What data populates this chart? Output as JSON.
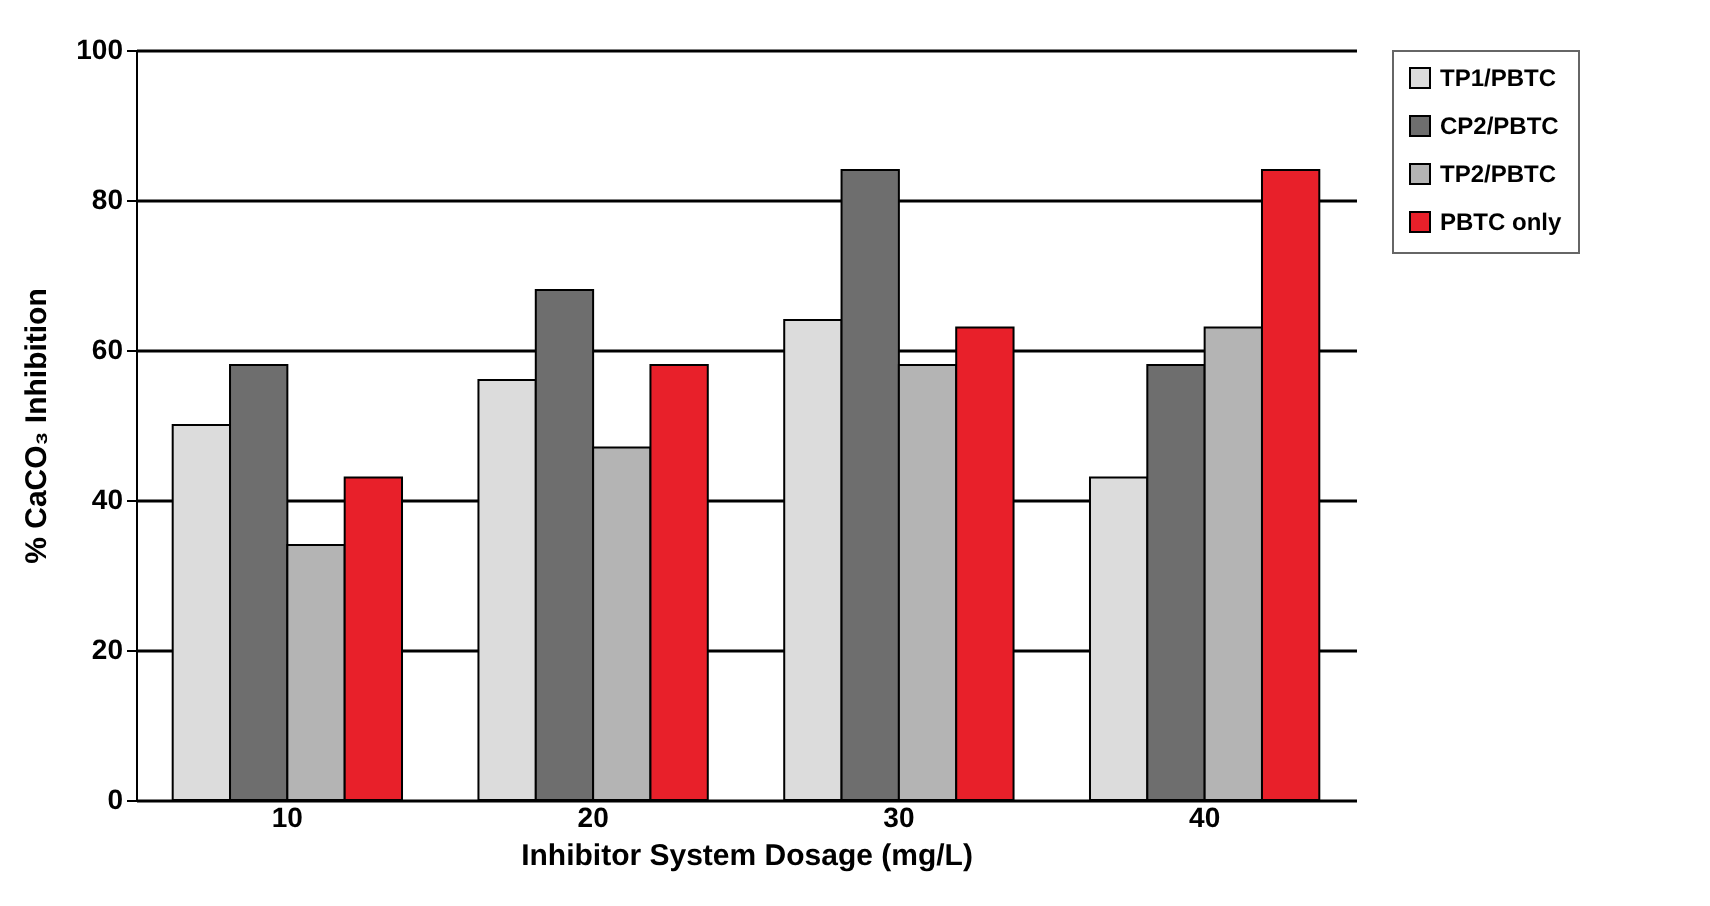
{
  "chart_data": {
    "type": "bar",
    "xlabel": "Inhibitor System Dosage (mg/L)",
    "ylabel": "% CaCO₃ Inhibition",
    "categories": [
      "10",
      "20",
      "30",
      "40"
    ],
    "series": [
      {
        "name": "TP1/PBTC",
        "color": "#dcdcdc",
        "values": [
          50,
          56,
          64,
          43
        ]
      },
      {
        "name": "CP2/PBTC",
        "color": "#6e6e6e",
        "values": [
          58,
          68,
          84,
          58
        ]
      },
      {
        "name": "TP2/PBTC",
        "color": "#b4b4b4",
        "values": [
          34,
          47,
          58,
          63
        ]
      },
      {
        "name": "PBTC only",
        "color": "#e8202a",
        "values": [
          43,
          58,
          63,
          84
        ]
      }
    ],
    "ylim": [
      0,
      100
    ],
    "yticks": [
      0,
      20,
      40,
      60,
      80,
      100
    ],
    "grid": "y",
    "legend": "right"
  }
}
